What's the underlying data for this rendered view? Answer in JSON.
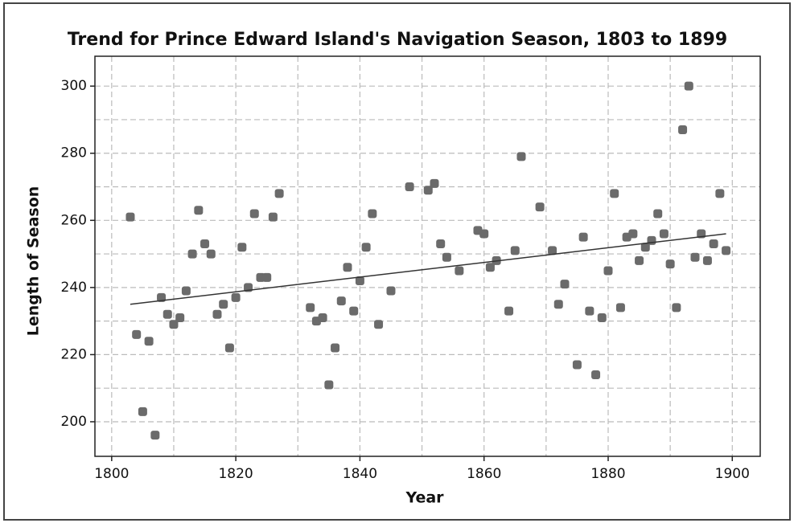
{
  "chart_data": {
    "type": "scatter",
    "title": "Trend for Prince Edward Island's Navigation Season, 1803 to 1899",
    "x_label": "Year",
    "y_label": "Length of Season",
    "color": "#6b6b6b",
    "grid": true,
    "xlim": [
      1797.3,
      1904.5
    ],
    "ylim": [
      189.7,
      308.9
    ],
    "xticks": [
      1800,
      1820,
      1840,
      1860,
      1880,
      1900
    ],
    "yticks": [
      200,
      220,
      240,
      260,
      280,
      300
    ],
    "xminor": [
      1810,
      1830,
      1850,
      1870,
      1890
    ],
    "yminor": [
      210,
      230,
      250,
      270,
      290
    ],
    "x": [
      1803,
      1804,
      1805,
      1806,
      1807,
      1808,
      1809,
      1810,
      1811,
      1812,
      1813,
      1814,
      1815,
      1816,
      1817,
      1818,
      1819,
      1820,
      1821,
      1822,
      1823,
      1824,
      1825,
      1826,
      1827,
      1832,
      1833,
      1834,
      1835,
      1836,
      1837,
      1838,
      1839,
      1840,
      1841,
      1842,
      1843,
      1845,
      1848,
      1851,
      1852,
      1853,
      1854,
      1856,
      1859,
      1860,
      1861,
      1862,
      1864,
      1865,
      1866,
      1869,
      1871,
      1872,
      1873,
      1875,
      1876,
      1877,
      1878,
      1879,
      1880,
      1881,
      1882,
      1883,
      1884,
      1885,
      1886,
      1887,
      1888,
      1889,
      1890,
      1891,
      1892,
      1893,
      1894,
      1895,
      1896,
      1897,
      1898,
      1899
    ],
    "values": [
      261,
      226,
      203,
      224,
      196,
      237,
      232,
      229,
      231,
      239,
      250,
      263,
      253,
      250,
      232,
      235,
      222,
      237,
      252,
      240,
      262,
      243,
      243,
      261,
      268,
      234,
      230,
      231,
      211,
      222,
      236,
      246,
      233,
      242,
      252,
      262,
      229,
      239,
      270,
      269,
      271,
      253,
      249,
      245,
      257,
      256,
      246,
      248,
      233,
      251,
      279,
      264,
      251,
      235,
      241,
      217,
      255,
      233,
      214,
      231,
      245,
      268,
      234,
      255,
      256,
      248,
      252,
      254,
      262,
      256,
      247,
      234,
      287,
      300,
      249,
      256,
      248,
      253,
      268,
      251
    ],
    "trend": {
      "x": [
        1803,
        1899
      ],
      "y": [
        235,
        256
      ],
      "color": "#333333"
    }
  }
}
